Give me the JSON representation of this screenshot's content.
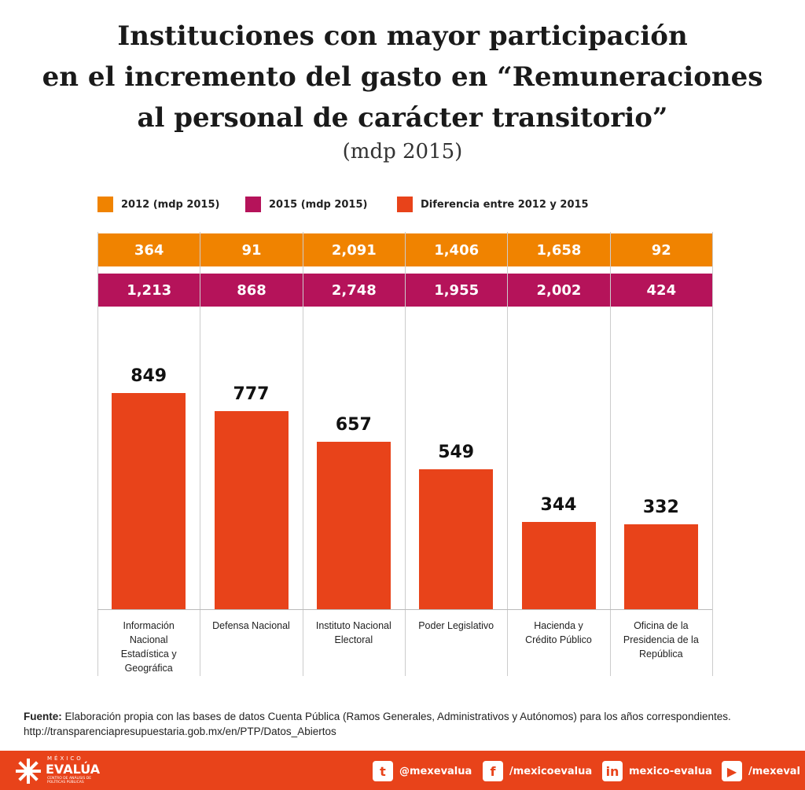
{
  "chart_data": {
    "type": "bar",
    "title": [
      "Instituciones con mayor participación",
      "en el incremento del gasto en “Remuneraciones",
      "al personal de carácter transitorio”"
    ],
    "subtitle": "(mdp 2015)",
    "categories": [
      "Información Nacional Estadística y Geográfica",
      "Defensa Nacional",
      "Instituto Nacional Electoral",
      "Poder Legislativo",
      "Hacienda y Crédito Público",
      "Oficina de la Presidencia de la República"
    ],
    "series": [
      {
        "name": "2012 (mdp 2015)",
        "color": "#f08300",
        "values": [
          364,
          91,
          2091,
          1406,
          1658,
          92
        ],
        "value_labels": [
          "364",
          "91",
          "2,091",
          "1,406",
          "1,658",
          "92"
        ]
      },
      {
        "name": "2015 (mdp 2015)",
        "color": "#b5135a",
        "values": [
          1213,
          868,
          2748,
          1955,
          2002,
          424
        ],
        "value_labels": [
          "1,213",
          "868",
          "2,748",
          "1,955",
          "2,002",
          "424"
        ]
      },
      {
        "name": "Diferencia entre 2012 y 2015",
        "color": "#e8431a",
        "values": [
          849,
          777,
          657,
          549,
          344,
          332
        ]
      }
    ],
    "source_label": "Fuente:",
    "source": "Elaboración propia con las bases de datos Cuenta Pública (Ramos Generales, Administrativos y Autónomos) para los años correspondientes.",
    "source_url": "http://transparenciapresupuestaria.gob.mx/en/PTP/Datos_Abiertos"
  },
  "footer": {
    "logo_top": "MÉXICO",
    "logo": "EVALÚA",
    "logo_sub": "CENTRO DE ANÁLISIS DE POLÍTICAS PÚBLICAS",
    "social": [
      "@mexevalua",
      "/mexicoevalua",
      "mexico-evalua",
      "/mexeval"
    ]
  }
}
